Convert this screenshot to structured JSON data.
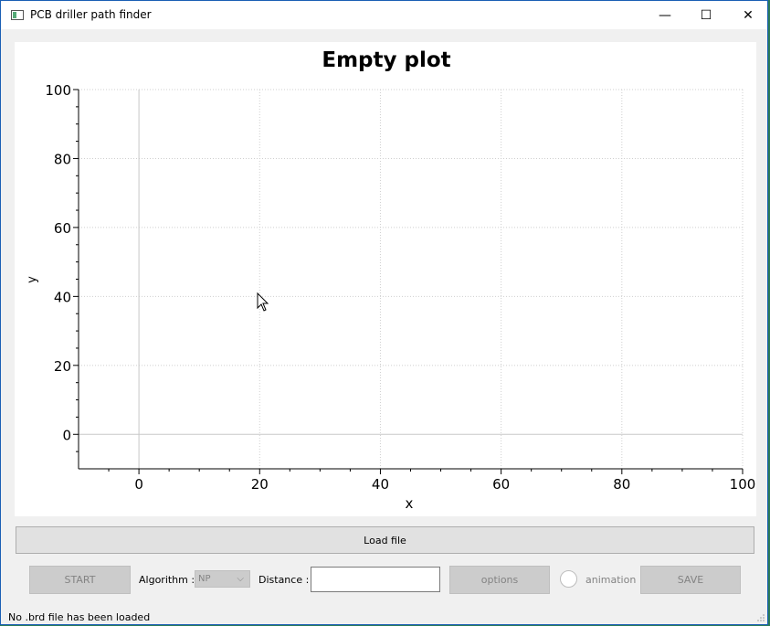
{
  "window": {
    "title": "PCB driller path finder"
  },
  "titlebar": {
    "minimize": "—",
    "maximize": "☐",
    "close": "✕"
  },
  "plot": {
    "chart_data": {
      "type": "scatter",
      "title": "Empty plot",
      "xlabel": "x",
      "ylabel": "y",
      "xlim": [
        -10,
        100
      ],
      "ylim": [
        -10,
        100
      ],
      "xticks": [
        "0",
        "20",
        "40",
        "60",
        "80",
        "100"
      ],
      "yticks": [
        "0",
        "20",
        "40",
        "60",
        "80",
        "100"
      ],
      "grid": true,
      "series": []
    }
  },
  "controls": {
    "load_file": "Load file",
    "start": "START",
    "algorithm_label": "Algorithm :",
    "algorithm_value": "NP",
    "distance_label": "Distance :",
    "distance_value": "",
    "options": "options",
    "animation_label": "animation",
    "save": "SAVE"
  },
  "status": {
    "message": "No .brd file has been loaded"
  },
  "colors": {
    "window_border": "#1a5fb4",
    "disabled_bg": "#cccccc",
    "disabled_text": "#838383"
  }
}
